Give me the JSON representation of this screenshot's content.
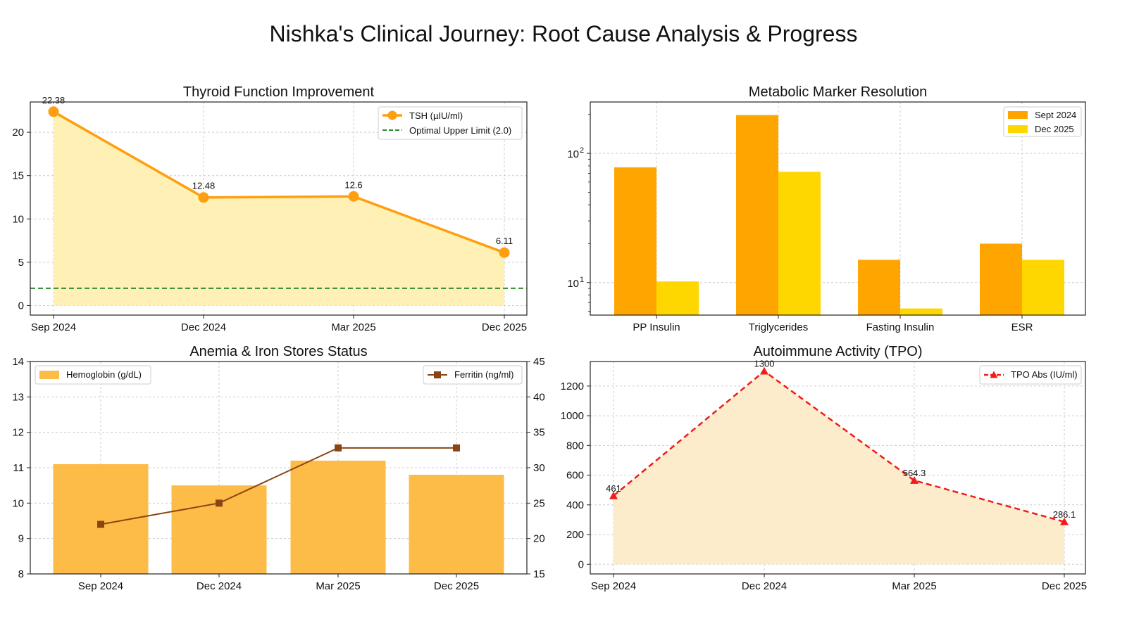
{
  "figure": {
    "title": "Nishka's Clinical Journey: Root Cause Analysis & Progress"
  },
  "colors": {
    "tsh": "#FF9E0F",
    "tsh_fill": "#FFF0AE",
    "optimal": "#2E8B2E",
    "sept2024": "#FFA500",
    "dec2025": "#FFD700",
    "hemoglobin": "#FDBB47",
    "ferritin": "#8B4513",
    "tpo": "#EE1C1C",
    "tpo_fill": "#FDEBC8",
    "grid": "#CCCCCC",
    "axis": "#222222"
  },
  "chart_data": [
    {
      "id": "thyroid",
      "type": "line",
      "title": "Thyroid Function Improvement",
      "categories": [
        "Sep 2024",
        "Dec 2024",
        "Mar 2025",
        "Dec 2025"
      ],
      "series": [
        {
          "name": "TSH (µIU/ml)",
          "values": [
            22.38,
            12.48,
            12.6,
            6.11
          ]
        }
      ],
      "data_labels": [
        "22.38",
        "12.48",
        "12.6",
        "6.11"
      ],
      "reference_line": {
        "name": "Optimal Upper Limit (2.0)",
        "value": 2.0
      },
      "ylim": [
        -1.1,
        23.5
      ],
      "yticks": [
        0,
        5,
        10,
        15,
        20
      ],
      "legend_position": "top-right",
      "grid": true
    },
    {
      "id": "metabolic",
      "type": "bar",
      "scale": "log",
      "title": "Metabolic Marker Resolution",
      "categories": [
        "PP Insulin",
        "Triglycerides",
        "Fasting Insulin",
        "ESR"
      ],
      "series": [
        {
          "name": "Sept 2024",
          "values": [
            78,
            198,
            15,
            20
          ]
        },
        {
          "name": "Dec 2025",
          "values": [
            10.2,
            72,
            6.3,
            15
          ]
        }
      ],
      "ylim": [
        5.6,
        250
      ],
      "yticks": [
        10,
        100
      ],
      "ytick_labels": [
        {
          "base": "10",
          "exp": "1"
        },
        {
          "base": "10",
          "exp": "2"
        }
      ],
      "legend_position": "top-right",
      "grid": true
    },
    {
      "id": "anemia",
      "type": "bar",
      "title": "Anemia & Iron Stores Status",
      "categories": [
        "Sep 2024",
        "Dec 2024",
        "Mar 2025",
        "Dec 2025"
      ],
      "series": [
        {
          "name": "Hemoglobin (g/dL)",
          "axis": "left",
          "type": "bar",
          "values": [
            11.1,
            10.5,
            11.2,
            10.8
          ]
        },
        {
          "name": "Ferritin (ng/ml)",
          "axis": "right",
          "type": "line",
          "values": [
            22,
            25,
            32.8,
            32.8
          ]
        }
      ],
      "ylim_left": [
        8,
        14
      ],
      "yticks_left": [
        8,
        9,
        10,
        11,
        12,
        13,
        14
      ],
      "ylim_right": [
        15,
        45
      ],
      "yticks_right": [
        15,
        20,
        25,
        30,
        35,
        40,
        45
      ],
      "legend_left_position": "top-left",
      "legend_right_position": "top-right",
      "grid": true
    },
    {
      "id": "tpo",
      "type": "line",
      "title": "Autoimmune Activity (TPO)",
      "categories": [
        "Sep 2024",
        "Dec 2024",
        "Mar 2025",
        "Dec 2025"
      ],
      "series": [
        {
          "name": "TPO Abs (IU/ml)",
          "values": [
            461,
            1300,
            564.3,
            286.1
          ]
        }
      ],
      "data_labels": [
        "461",
        "1300",
        "564.3",
        "286.1"
      ],
      "ylim": [
        -65,
        1365
      ],
      "yticks": [
        0,
        200,
        400,
        600,
        800,
        1000,
        1200
      ],
      "legend_position": "top-right",
      "grid": true
    }
  ]
}
